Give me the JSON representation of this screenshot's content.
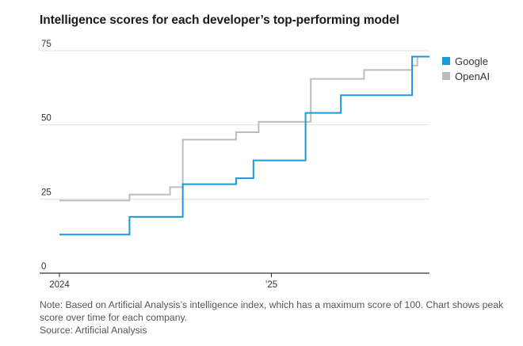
{
  "title": "Intelligence scores for each developer’s top-performing model",
  "note": "Note: Based on Artificial Analysis’s intelligence index, which has a maximum score of 100. Chart shows peak score over time for each company.",
  "source": "Source: Artificial Analysis",
  "chart_data": {
    "type": "line",
    "step": true,
    "x_unit": "date",
    "x_ticks": [
      {
        "x": "2024-01-01",
        "label": "2024"
      },
      {
        "x": "2025-01-01",
        "label": "’25"
      }
    ],
    "xlim": [
      "2024-01-01",
      "2025-10-01"
    ],
    "ylim": [
      0,
      75
    ],
    "y_ticks": [
      {
        "y": 0,
        "label": "0"
      },
      {
        "y": 25,
        "label": "25"
      },
      {
        "y": 50,
        "label": "50"
      },
      {
        "y": 75,
        "label": "75"
      }
    ],
    "grid": true,
    "legend_position": "top-right",
    "series": [
      {
        "name": "Google",
        "color": "#1a9ad6",
        "points": [
          [
            "2024-01-01",
            13
          ],
          [
            "2024-05-01",
            19
          ],
          [
            "2024-08-01",
            30
          ],
          [
            "2024-11-01",
            32
          ],
          [
            "2024-12-01",
            38
          ],
          [
            "2025-03-01",
            54
          ],
          [
            "2025-05-01",
            60
          ],
          [
            "2025-09-01",
            73
          ],
          [
            "2025-10-01",
            73
          ]
        ]
      },
      {
        "name": "OpenAI",
        "color": "#bdbdbd",
        "points": [
          [
            "2024-01-01",
            24.5
          ],
          [
            "2024-05-01",
            26.5
          ],
          [
            "2024-07-10",
            29
          ],
          [
            "2024-08-01",
            45
          ],
          [
            "2024-11-01",
            47.5
          ],
          [
            "2024-12-10",
            51
          ],
          [
            "2025-03-10",
            65.5
          ],
          [
            "2025-06-10",
            68.5
          ],
          [
            "2025-09-01",
            70
          ],
          [
            "2025-09-10",
            73
          ],
          [
            "2025-10-01",
            73
          ]
        ]
      }
    ]
  }
}
